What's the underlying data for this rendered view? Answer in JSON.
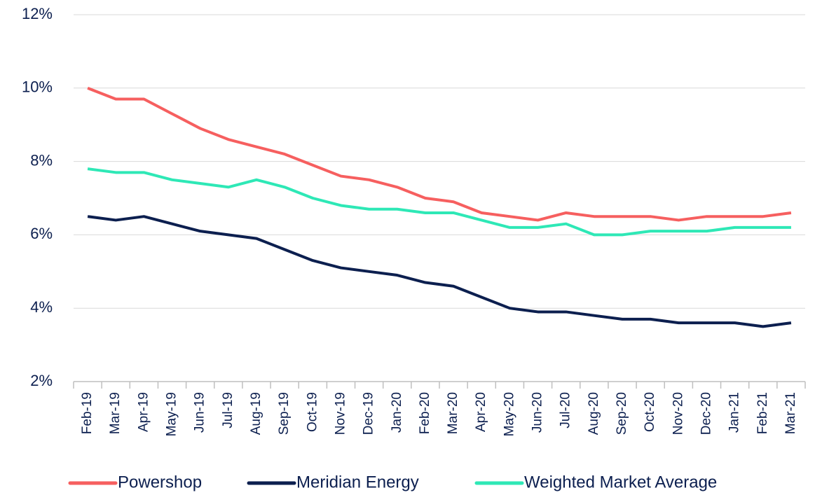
{
  "chart_data": {
    "type": "line",
    "categories": [
      "Feb-19",
      "Mar-19",
      "Apr-19",
      "May-19",
      "Jun-19",
      "Jul-19",
      "Aug-19",
      "Sep-19",
      "Oct-19",
      "Nov-19",
      "Dec-19",
      "Jan-20",
      "Feb-20",
      "Mar-20",
      "Apr-20",
      "May-20",
      "Jun-20",
      "Jul-20",
      "Aug-20",
      "Sep-20",
      "Oct-20",
      "Nov-20",
      "Dec-20",
      "Jan-21",
      "Feb-21",
      "Mar-21"
    ],
    "series": [
      {
        "name": "Powershop",
        "color": "#f65f5f",
        "values": [
          10,
          9.7,
          9.7,
          9.3,
          8.9,
          8.6,
          8.4,
          8.2,
          7.9,
          7.6,
          7.5,
          7.3,
          7.0,
          6.9,
          6.6,
          6.5,
          6.4,
          6.6,
          6.5,
          6.5,
          6.5,
          6.4,
          6.5,
          6.5,
          6.5,
          6.6
        ]
      },
      {
        "name": "Meridian Energy",
        "color": "#0c1f4f",
        "values": [
          6.5,
          6.4,
          6.5,
          6.3,
          6.1,
          6.0,
          5.9,
          5.6,
          5.3,
          5.1,
          5.0,
          4.9,
          4.7,
          4.6,
          4.3,
          4.0,
          3.9,
          3.9,
          3.8,
          3.7,
          3.7,
          3.6,
          3.6,
          3.6,
          3.5,
          3.6
        ]
      },
      {
        "name": "Weighted Market Average",
        "color": "#2ee8b6",
        "values": [
          7.8,
          7.7,
          7.7,
          7.5,
          7.4,
          7.3,
          7.5,
          7.3,
          7.0,
          6.8,
          6.7,
          6.7,
          6.6,
          6.6,
          6.4,
          6.2,
          6.2,
          6.3,
          6.0,
          6.0,
          6.1,
          6.1,
          6.1,
          6.2,
          6.2,
          6.2
        ]
      }
    ],
    "ylim": [
      2,
      12
    ],
    "yticks": [
      {
        "value": 2,
        "label": "2%"
      },
      {
        "value": 4,
        "label": "4%"
      },
      {
        "value": 6,
        "label": "6%"
      },
      {
        "value": 8,
        "label": "8%"
      },
      {
        "value": 10,
        "label": "10%"
      },
      {
        "value": 12,
        "label": "12%"
      }
    ],
    "grid": true,
    "legend": "bottom"
  }
}
